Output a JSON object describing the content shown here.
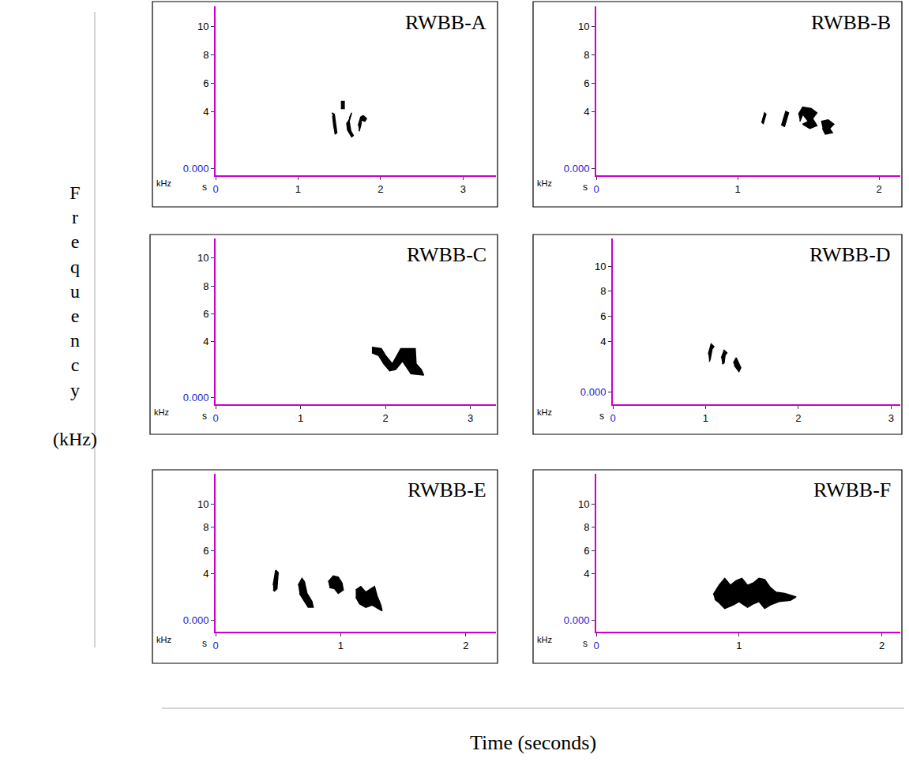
{
  "axis_labels": {
    "x": "Time (seconds)",
    "y": "Frequency (kHz)"
  },
  "chart_data": [
    {
      "type": "spectrogram",
      "title": "RWBB-A",
      "annotations": [
        "kHz",
        "s"
      ],
      "color": "#000000",
      "grid": false,
      "xlim": [
        0,
        3.4
      ],
      "xticks": [
        0,
        1,
        2,
        3
      ],
      "ylim": [
        -0.5,
        11.4
      ],
      "yticks": [
        {
          "value": 0,
          "label": "0.000"
        },
        4,
        6,
        8,
        10
      ],
      "syllables": [
        {
          "x": [
            1.52,
            1.56,
            1.56,
            1.52
          ],
          "y": [
            4.2,
            4.2,
            4.7,
            4.7
          ]
        },
        {
          "x": [
            1.41,
            1.44,
            1.47,
            1.45,
            1.43,
            1.42
          ],
          "y": [
            3.9,
            3.8,
            2.5,
            2.4,
            3.1,
            3.7
          ]
        },
        {
          "x": [
            1.62,
            1.65,
            1.62,
            1.64,
            1.67,
            1.65,
            1.6,
            1.59
          ],
          "y": [
            3.5,
            3.9,
            3.3,
            2.6,
            2.3,
            2.2,
            2.7,
            3.2
          ]
        },
        {
          "x": [
            1.73,
            1.76,
            1.79,
            1.83,
            1.81,
            1.77,
            1.76,
            1.74
          ],
          "y": [
            3.0,
            3.6,
            3.7,
            3.5,
            3.3,
            3.4,
            3.0,
            2.6
          ]
        }
      ]
    },
    {
      "type": "spectrogram",
      "title": "RWBB-B",
      "annotations": [
        "kHz",
        "s"
      ],
      "color": "#000000",
      "grid": false,
      "xlim": [
        0,
        2.15
      ],
      "xticks": [
        0,
        1,
        2
      ],
      "ylim": [
        -0.5,
        11.4
      ],
      "yticks": [
        {
          "value": 0,
          "label": "0.000"
        },
        4,
        6,
        8,
        10
      ],
      "syllables": [
        {
          "x": [
            1.17,
            1.19,
            1.2,
            1.18
          ],
          "y": [
            3.2,
            3.9,
            3.8,
            3.1
          ]
        },
        {
          "x": [
            1.31,
            1.34,
            1.36,
            1.33
          ],
          "y": [
            3.0,
            4.0,
            3.9,
            2.9
          ]
        },
        {
          "x": [
            1.43,
            1.46,
            1.52,
            1.56,
            1.53,
            1.56,
            1.51,
            1.46,
            1.5,
            1.46,
            1.44
          ],
          "y": [
            3.8,
            4.3,
            4.2,
            3.9,
            3.5,
            3.0,
            2.8,
            3.1,
            3.3,
            3.8,
            3.3
          ]
        },
        {
          "x": [
            1.59,
            1.64,
            1.68,
            1.65,
            1.67,
            1.62,
            1.6
          ],
          "y": [
            3.3,
            3.4,
            3.1,
            2.8,
            2.5,
            2.4,
            2.8
          ]
        }
      ]
    },
    {
      "type": "spectrogram",
      "title": "RWBB-C",
      "annotations": [
        "kHz",
        "s"
      ],
      "color": "#000000",
      "grid": false,
      "xlim": [
        0,
        3.3
      ],
      "xticks": [
        0,
        1,
        2,
        3
      ],
      "ylim": [
        -0.5,
        11.4
      ],
      "yticks": [
        {
          "value": 0,
          "label": "0.000"
        },
        4,
        6,
        8,
        10
      ],
      "syllables": [
        {
          "x": [
            1.84,
            1.95,
            2.0,
            2.08,
            2.18,
            2.35,
            2.36,
            2.42,
            2.45,
            2.3,
            2.2,
            2.12,
            2.05,
            1.98,
            1.92,
            1.84
          ],
          "y": [
            3.6,
            3.5,
            3.0,
            2.4,
            3.5,
            3.5,
            2.4,
            2.0,
            1.6,
            1.7,
            2.6,
            2.0,
            1.9,
            2.4,
            3.0,
            3.2
          ]
        }
      ]
    },
    {
      "type": "spectrogram",
      "title": "RWBB-D",
      "annotations": [
        "kHz",
        "s"
      ],
      "color": "#000000",
      "grid": false,
      "xlim": [
        0,
        3.1
      ],
      "xticks": [
        0,
        1,
        2,
        3
      ],
      "ylim": [
        -1,
        12.2
      ],
      "yticks": [
        {
          "value": 0,
          "label": "0.000"
        },
        4,
        6,
        8,
        10
      ],
      "syllables": [
        {
          "x": [
            1.03,
            1.06,
            1.09,
            1.07,
            1.05,
            1.04
          ],
          "y": [
            3.0,
            3.8,
            3.6,
            3.4,
            2.6,
            2.4
          ]
        },
        {
          "x": [
            1.17,
            1.2,
            1.23,
            1.21,
            1.2,
            1.18
          ],
          "y": [
            2.7,
            3.3,
            3.1,
            2.9,
            2.3,
            2.2
          ]
        },
        {
          "x": [
            1.3,
            1.33,
            1.38,
            1.36,
            1.33,
            1.31
          ],
          "y": [
            2.3,
            2.7,
            1.9,
            1.6,
            1.9,
            2.1
          ]
        }
      ]
    },
    {
      "type": "spectrogram",
      "title": "RWBB-E",
      "annotations": [
        "kHz",
        "s"
      ],
      "color": "#000000",
      "grid": false,
      "xlim": [
        0,
        2.24
      ],
      "xticks": [
        0,
        1,
        2
      ],
      "ylim": [
        -1,
        12.6
      ],
      "yticks": [
        {
          "value": 0,
          "label": "0.000"
        },
        4,
        6,
        8,
        10
      ],
      "syllables": [
        {
          "x": [
            0.46,
            0.48,
            0.5,
            0.49,
            0.47,
            0.46
          ],
          "y": [
            3.0,
            4.3,
            4.1,
            2.7,
            2.5,
            2.6
          ]
        },
        {
          "x": [
            0.66,
            0.69,
            0.71,
            0.73,
            0.77,
            0.78,
            0.74,
            0.7,
            0.67
          ],
          "y": [
            3.0,
            3.6,
            3.3,
            2.3,
            1.6,
            1.1,
            1.1,
            1.8,
            2.3
          ]
        },
        {
          "x": [
            0.9,
            0.94,
            0.98,
            1.01,
            1.02,
            0.98,
            0.95,
            0.91
          ],
          "y": [
            3.3,
            3.8,
            3.7,
            3.2,
            2.6,
            2.3,
            2.7,
            2.8
          ]
        },
        {
          "x": [
            1.12,
            1.16,
            1.2,
            1.24,
            1.27,
            1.29,
            1.32,
            1.33,
            1.3,
            1.25,
            1.2,
            1.15,
            1.12
          ],
          "y": [
            2.6,
            2.9,
            2.4,
            2.7,
            2.9,
            2.1,
            1.3,
            0.8,
            1.0,
            1.3,
            1.1,
            1.4,
            2.0
          ]
        }
      ]
    },
    {
      "type": "spectrogram",
      "title": "RWBB-F",
      "annotations": [
        "kHz",
        "s"
      ],
      "color": "#000000",
      "grid": false,
      "xlim": [
        0,
        2.13
      ],
      "xticks": [
        0,
        1,
        2
      ],
      "ylim": [
        -1,
        12.6
      ],
      "yticks": [
        {
          "value": 0,
          "label": "0.000"
        },
        4,
        6,
        8,
        10
      ],
      "syllables": [
        {
          "x": [
            0.82,
            0.86,
            0.9,
            0.94,
            0.98,
            1.02,
            1.06,
            1.1,
            1.14,
            1.18,
            1.22,
            1.26,
            1.32,
            1.4,
            1.36,
            1.28,
            1.22,
            1.18,
            1.14,
            1.1,
            1.06,
            1.0,
            0.96,
            0.9,
            0.86,
            0.83
          ],
          "y": [
            2.2,
            3.0,
            3.6,
            3.0,
            3.4,
            3.6,
            3.0,
            3.2,
            3.6,
            3.5,
            2.8,
            2.4,
            2.3,
            2.0,
            1.7,
            1.6,
            1.3,
            1.0,
            1.6,
            1.4,
            1.1,
            1.6,
            1.3,
            1.0,
            1.5,
            1.8
          ]
        }
      ]
    }
  ]
}
